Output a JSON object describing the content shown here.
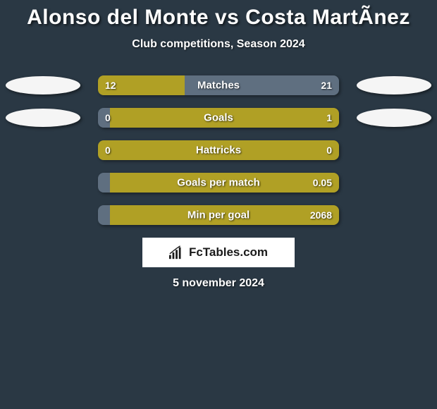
{
  "title": "Alonso del Monte vs Costa MartÃ­nez",
  "subtitle": "Club competitions, Season 2024",
  "background_color": "#2a3844",
  "text_color": "#ffffff",
  "ellipse_color": "#f5f5f5",
  "bars": [
    {
      "label": "Matches",
      "left_value": "12",
      "right_value": "21",
      "left_pct": 36,
      "show_ellipses": true,
      "left_color": "#b0a025",
      "right_color": "#5f6f80"
    },
    {
      "label": "Goals",
      "left_value": "0",
      "right_value": "1",
      "left_pct": 5,
      "show_ellipses": true,
      "left_color": "#5f6f80",
      "right_color": "#b0a025"
    },
    {
      "label": "Hattricks",
      "left_value": "0",
      "right_value": "0",
      "left_pct": 100,
      "show_ellipses": false,
      "left_color": "#b0a025",
      "right_color": "#5f6f80"
    },
    {
      "label": "Goals per match",
      "left_value": "",
      "right_value": "0.05",
      "left_pct": 5,
      "show_ellipses": false,
      "left_color": "#5f6f80",
      "right_color": "#b0a025"
    },
    {
      "label": "Min per goal",
      "left_value": "",
      "right_value": "2068",
      "left_pct": 5,
      "show_ellipses": false,
      "left_color": "#5f6f80",
      "right_color": "#b0a025"
    }
  ],
  "logo": {
    "text": "FcTables.com",
    "bg": "#ffffff",
    "text_color": "#1a1a1a"
  },
  "date": "5 november 2024"
}
